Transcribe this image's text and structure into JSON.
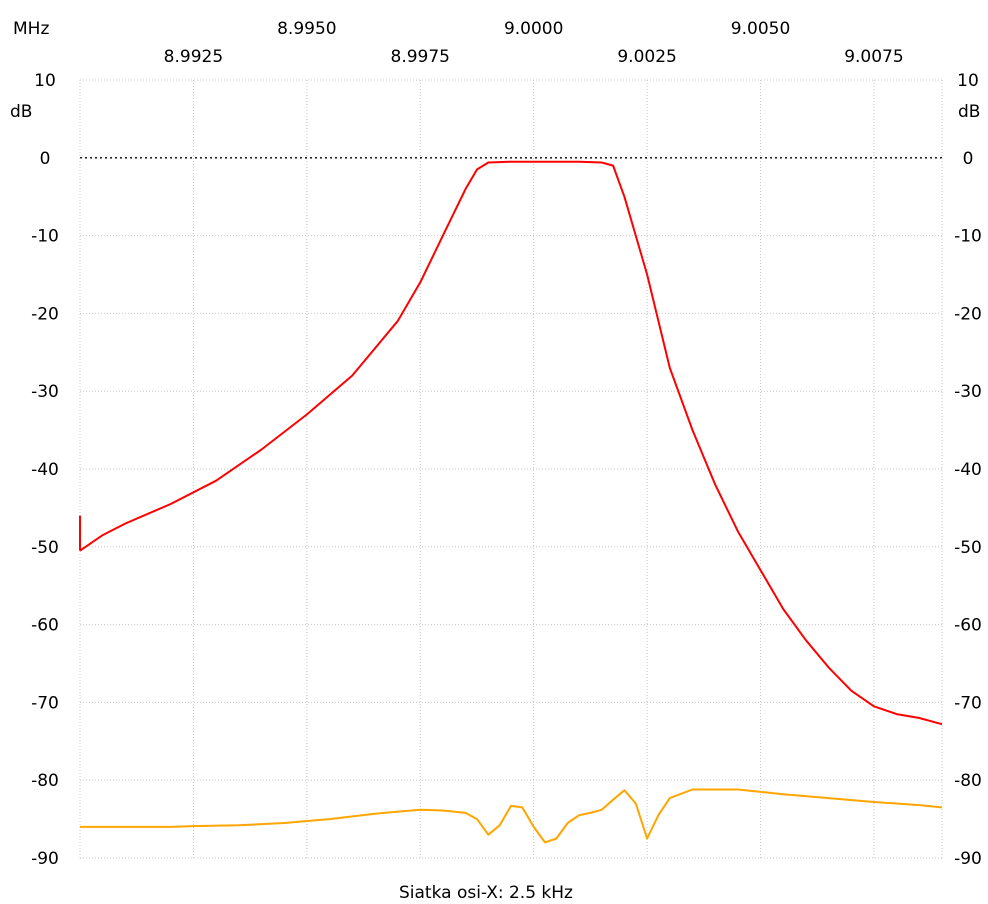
{
  "chart_data": {
    "type": "line",
    "x_unit": "MHz",
    "y_unit": "dB",
    "xlim": [
      8.99,
      9.009
    ],
    "ylim": [
      -90,
      10
    ],
    "x_ticks_top_row": [
      "8.9950",
      "9.0000",
      "9.0050"
    ],
    "x_ticks_bottom_row": [
      "8.9925",
      "8.9975",
      "9.0025",
      "9.0075"
    ],
    "x_gridlines": [
      8.9925,
      8.995,
      8.9975,
      9.0,
      9.0025,
      9.005,
      9.0075
    ],
    "y_ticks": [
      10,
      0,
      -10,
      -20,
      -30,
      -40,
      -50,
      -60,
      -70,
      -80,
      -90
    ],
    "reference_line_y": 0,
    "grid": true,
    "footer": "Siatka osi-X: 2.5 kHz",
    "series": [
      {
        "color": "#ff0000",
        "x": [
          8.99,
          8.9905,
          8.991,
          8.992,
          8.993,
          8.994,
          8.995,
          8.996,
          8.997,
          8.9975,
          8.998,
          8.9985,
          8.99875,
          8.999,
          8.9995,
          9.0,
          9.0005,
          9.001,
          9.0015,
          9.00175,
          9.002,
          9.0025,
          9.003,
          9.0035,
          9.004,
          9.0045,
          9.005,
          9.0055,
          9.006,
          9.0065,
          9.007,
          9.0075,
          9.008,
          9.0085,
          9.009
        ],
        "y": [
          -50.5,
          -48.5,
          -47.0,
          -44.5,
          -41.5,
          -37.5,
          -33.0,
          -28.0,
          -21.0,
          -16.0,
          -10.0,
          -4.0,
          -1.5,
          -0.6,
          -0.5,
          -0.5,
          -0.5,
          -0.5,
          -0.6,
          -1.0,
          -5.0,
          -15.0,
          -27.0,
          -35.0,
          -42.0,
          -48.0,
          -53.0,
          -58.0,
          -62.0,
          -65.5,
          -68.5,
          -70.5,
          -71.5,
          -72.0,
          -72.8
        ]
      },
      {
        "color": "#ffa500",
        "x": [
          8.99,
          8.991,
          8.992,
          8.9925,
          8.9935,
          8.9945,
          8.9955,
          8.9965,
          8.9975,
          8.998,
          8.9985,
          8.99875,
          8.999,
          8.99925,
          8.9995,
          8.99975,
          9.0,
          9.00025,
          9.0005,
          9.00075,
          9.001,
          9.00125,
          9.0015,
          9.00175,
          9.002,
          9.00225,
          9.0025,
          9.00275,
          9.003,
          9.0035,
          9.0045,
          9.0055,
          9.0065,
          9.0075,
          9.0085,
          9.009
        ],
        "y": [
          -86.0,
          -86.0,
          -86.0,
          -85.9,
          -85.8,
          -85.5,
          -85.0,
          -84.3,
          -83.8,
          -83.9,
          -84.2,
          -85.0,
          -87.0,
          -85.8,
          -83.3,
          -83.5,
          -86.0,
          -88.0,
          -87.5,
          -85.5,
          -84.5,
          -84.2,
          -83.8,
          -82.5,
          -81.3,
          -83.0,
          -87.5,
          -84.5,
          -82.3,
          -81.2,
          -81.2,
          -81.8,
          -82.3,
          -82.8,
          -83.2,
          -83.5
        ]
      }
    ]
  }
}
